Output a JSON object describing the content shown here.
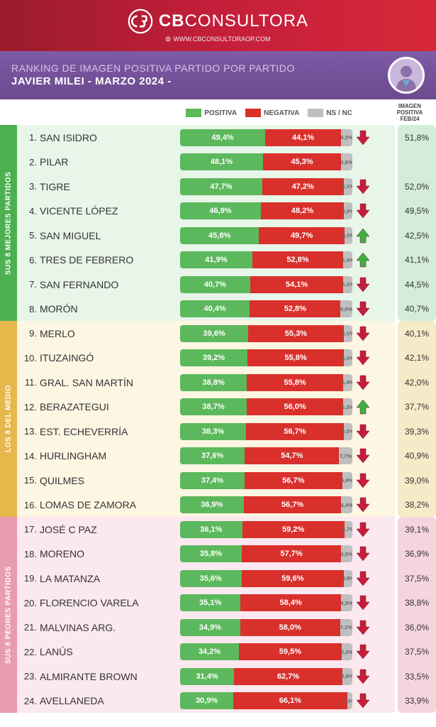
{
  "brand": {
    "name_bold": "CB",
    "name_light": "CONSULTORA",
    "website": "WWW.CBCONSULTORAOP.COM"
  },
  "title": {
    "line1": "RANKING DE IMAGEN POSITIVA PARTIDO POR PARTIDO",
    "line2": "JAVIER MILEI - MARZO 2024 -"
  },
  "legend": {
    "positive": "POSITIVA",
    "negative": "NEGATIVA",
    "nsnc": "NS / NC",
    "prev_header": "IMAGEN POSITIVA FEB/24"
  },
  "colors": {
    "positive": "#5cb85c",
    "negative": "#d9302c",
    "nsnc": "#bfbfbf",
    "group_best_side": "#4caf50",
    "group_best_bg": "#e8f5e9",
    "group_best_prev": "#d4edda",
    "group_mid_side": "#e6b84c",
    "group_mid_bg": "#fdf6e3",
    "group_mid_prev": "#f5ebc8",
    "group_worst_side": "#e89cb0",
    "group_worst_bg": "#fce8ef",
    "group_worst_prev": "#f5d4de",
    "arrow_down": "#c41e3a",
    "arrow_up": "#3cb043"
  },
  "groups": [
    {
      "id": "best",
      "side_label": "SUS 8 MEJORES PARTIDOS",
      "rows": [
        {
          "rank": "1.",
          "name": "SAN ISIDRO",
          "pos": 49.4,
          "neg": 44.1,
          "ns": 6.5,
          "arrow": "down",
          "prev": "51,8%"
        },
        {
          "rank": "2.",
          "name": "PILAR",
          "pos": 48.1,
          "neg": 45.3,
          "ns": 6.6,
          "arrow": "none",
          "prev": ""
        },
        {
          "rank": "3.",
          "name": "TIGRE",
          "pos": 47.7,
          "neg": 47.2,
          "ns": 5.1,
          "arrow": "down",
          "prev": "52,0%"
        },
        {
          "rank": "4.",
          "name": "VICENTE LÓPEZ",
          "pos": 46.9,
          "neg": 48.2,
          "ns": 4.9,
          "arrow": "down",
          "prev": "49,5%"
        },
        {
          "rank": "5.",
          "name": "SAN MIGUEL",
          "pos": 45.8,
          "neg": 49.7,
          "ns": 4.5,
          "arrow": "up",
          "prev": "42,5%"
        },
        {
          "rank": "6.",
          "name": "TRES DE FEBRERO",
          "pos": 41.9,
          "neg": 52.8,
          "ns": 5.3,
          "arrow": "up",
          "prev": "41,1%"
        },
        {
          "rank": "7.",
          "name": "SAN FERNANDO",
          "pos": 40.7,
          "neg": 54.1,
          "ns": 5.2,
          "arrow": "down",
          "prev": "44,5%"
        },
        {
          "rank": "8.",
          "name": "MORÓN",
          "pos": 40.4,
          "neg": 52.8,
          "ns": 6.8,
          "arrow": "down",
          "prev": "40,7%"
        }
      ]
    },
    {
      "id": "mid",
      "side_label": "LOS 8 DEL MEDIO",
      "rows": [
        {
          "rank": "9.",
          "name": "MERLO",
          "pos": 39.6,
          "neg": 55.3,
          "ns": 5.1,
          "arrow": "down",
          "prev": "40,1%"
        },
        {
          "rank": "10.",
          "name": "ITUZAINGÓ",
          "pos": 39.2,
          "neg": 55.8,
          "ns": 5.0,
          "arrow": "down",
          "prev": "42,1%"
        },
        {
          "rank": "11.",
          "name": "GRAL. SAN MARTÍN",
          "pos": 38.8,
          "neg": 55.8,
          "ns": 5.4,
          "arrow": "down",
          "prev": "42,0%"
        },
        {
          "rank": "12.",
          "name": "BERAZATEGUI",
          "pos": 38.7,
          "neg": 56.0,
          "ns": 5.3,
          "arrow": "up",
          "prev": "37,7%"
        },
        {
          "rank": "13.",
          "name": "EST. ECHEVERRÍA",
          "pos": 38.3,
          "neg": 56.7,
          "ns": 5.0,
          "arrow": "down",
          "prev": "39,3%"
        },
        {
          "rank": "14.",
          "name": "HURLINGHAM",
          "pos": 37.6,
          "neg": 54.7,
          "ns": 7.7,
          "arrow": "down",
          "prev": "40,9%"
        },
        {
          "rank": "15.",
          "name": "QUILMES",
          "pos": 37.4,
          "neg": 56.7,
          "ns": 5.9,
          "arrow": "down",
          "prev": "39,0%"
        },
        {
          "rank": "16.",
          "name": "LOMAS DE ZAMORA",
          "pos": 36.9,
          "neg": 56.7,
          "ns": 6.4,
          "arrow": "down",
          "prev": "38,2%"
        }
      ]
    },
    {
      "id": "worst",
      "side_label": "SUS 8 PEORES PARTIDOS",
      "rows": [
        {
          "rank": "17.",
          "name": "JOSÉ C PAZ",
          "pos": 36.1,
          "neg": 59.2,
          "ns": 4.7,
          "arrow": "down",
          "prev": "39,1%"
        },
        {
          "rank": "18.",
          "name": "MORENO",
          "pos": 35.8,
          "neg": 57.7,
          "ns": 6.5,
          "arrow": "down",
          "prev": "36,9%"
        },
        {
          "rank": "19.",
          "name": "LA MATANZA",
          "pos": 35.6,
          "neg": 59.6,
          "ns": 4.8,
          "arrow": "down",
          "prev": "37,5%"
        },
        {
          "rank": "20.",
          "name": "FLORENCIO VARELA",
          "pos": 35.1,
          "neg": 58.4,
          "ns": 6.5,
          "arrow": "down",
          "prev": "38,8%"
        },
        {
          "rank": "21.",
          "name": "MALVINAS ARG.",
          "pos": 34.9,
          "neg": 58.0,
          "ns": 7.1,
          "arrow": "down",
          "prev": "36,0%"
        },
        {
          "rank": "22.",
          "name": "LANÚS",
          "pos": 34.2,
          "neg": 59.5,
          "ns": 6.3,
          "arrow": "down",
          "prev": "37,5%"
        },
        {
          "rank": "23.",
          "name": "ALMIRANTE BROWN",
          "pos": 31.4,
          "neg": 62.7,
          "ns": 5.9,
          "arrow": "down",
          "prev": "33,5%"
        },
        {
          "rank": "24.",
          "name": "AVELLANEDA",
          "pos": 30.9,
          "neg": 66.1,
          "ns": 3.0,
          "arrow": "down",
          "prev": "33,9%"
        }
      ]
    }
  ]
}
